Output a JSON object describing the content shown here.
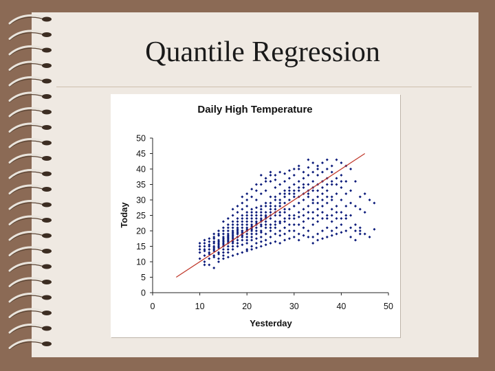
{
  "slide": {
    "title": "Quantile Regression"
  },
  "colors": {
    "background": "#8b6a55",
    "paper": "#efe9e2",
    "points": "#0a1a7a",
    "fit_line": "#c0392b"
  },
  "chart_data": {
    "type": "scatter",
    "title": "Daily High Temperature",
    "xlabel": "Yesterday",
    "ylabel": "Today",
    "xlim": [
      0,
      50
    ],
    "ylim": [
      0,
      50
    ],
    "xticks": [
      0,
      10,
      20,
      30,
      40,
      50
    ],
    "yticks": [
      0,
      5,
      10,
      15,
      20,
      25,
      30,
      35,
      40,
      45,
      50
    ],
    "grid": false,
    "legend": "none",
    "fit_line": {
      "x": [
        5,
        45
      ],
      "y": [
        5,
        45
      ]
    },
    "points": [
      [
        10,
        11
      ],
      [
        10,
        13
      ],
      [
        10,
        15
      ],
      [
        11,
        10
      ],
      [
        11,
        12
      ],
      [
        11,
        14
      ],
      [
        11,
        16
      ],
      [
        11,
        13.5
      ],
      [
        12,
        11
      ],
      [
        12,
        13
      ],
      [
        12,
        15
      ],
      [
        12,
        12.5
      ],
      [
        12,
        16.5
      ],
      [
        13,
        12
      ],
      [
        13,
        14
      ],
      [
        13,
        16
      ],
      [
        13,
        11.5
      ],
      [
        13,
        13.5
      ],
      [
        13,
        17.5
      ],
      [
        14,
        12.5
      ],
      [
        14,
        14.5
      ],
      [
        14,
        16.5
      ],
      [
        14,
        18.5
      ],
      [
        14,
        13
      ],
      [
        14,
        11
      ],
      [
        15,
        13
      ],
      [
        15,
        15
      ],
      [
        15,
        17
      ],
      [
        15,
        19
      ],
      [
        15,
        14
      ],
      [
        15,
        21
      ],
      [
        15,
        12
      ],
      [
        16,
        14
      ],
      [
        16,
        16
      ],
      [
        16,
        18
      ],
      [
        16,
        20
      ],
      [
        16,
        22
      ],
      [
        16,
        15
      ],
      [
        16,
        17.5
      ],
      [
        16,
        13
      ],
      [
        17,
        15
      ],
      [
        17,
        17
      ],
      [
        17,
        19
      ],
      [
        17,
        21
      ],
      [
        17,
        23
      ],
      [
        17,
        25
      ],
      [
        17,
        16
      ],
      [
        17,
        14
      ],
      [
        18,
        16
      ],
      [
        18,
        18
      ],
      [
        18,
        20
      ],
      [
        18,
        22
      ],
      [
        18,
        24
      ],
      [
        18,
        26
      ],
      [
        18,
        15
      ],
      [
        18,
        19.5
      ],
      [
        19,
        17
      ],
      [
        19,
        19
      ],
      [
        19,
        21
      ],
      [
        19,
        23
      ],
      [
        19,
        25
      ],
      [
        19,
        27
      ],
      [
        19,
        29
      ],
      [
        19,
        15.5
      ],
      [
        20,
        16
      ],
      [
        20,
        18
      ],
      [
        20,
        20
      ],
      [
        20,
        22
      ],
      [
        20,
        24
      ],
      [
        20,
        26
      ],
      [
        20,
        28
      ],
      [
        20,
        30
      ],
      [
        20,
        14
      ],
      [
        21,
        17
      ],
      [
        21,
        19
      ],
      [
        21,
        21
      ],
      [
        21,
        23
      ],
      [
        21,
        25
      ],
      [
        21,
        27
      ],
      [
        21,
        31
      ],
      [
        21,
        15
      ],
      [
        22,
        17.5
      ],
      [
        22,
        20
      ],
      [
        22,
        22.5
      ],
      [
        22,
        25
      ],
      [
        22,
        27.5
      ],
      [
        22,
        30
      ],
      [
        22,
        33
      ],
      [
        22,
        16
      ],
      [
        23,
        18
      ],
      [
        23,
        20
      ],
      [
        23,
        22
      ],
      [
        23,
        24
      ],
      [
        23,
        26
      ],
      [
        23,
        28
      ],
      [
        23,
        32
      ],
      [
        23,
        35
      ],
      [
        23,
        16.5
      ],
      [
        24,
        17
      ],
      [
        24,
        19
      ],
      [
        24,
        21
      ],
      [
        24,
        23
      ],
      [
        24,
        25
      ],
      [
        24,
        29
      ],
      [
        24,
        33
      ],
      [
        24,
        37
      ],
      [
        25,
        18
      ],
      [
        25,
        20
      ],
      [
        25,
        22
      ],
      [
        25,
        24
      ],
      [
        25,
        26
      ],
      [
        25,
        28
      ],
      [
        25,
        31
      ],
      [
        25,
        36
      ],
      [
        25,
        38
      ],
      [
        26,
        19
      ],
      [
        26,
        21
      ],
      [
        26,
        23
      ],
      [
        26,
        25
      ],
      [
        26,
        27
      ],
      [
        26,
        30
      ],
      [
        26,
        34
      ],
      [
        26,
        38
      ],
      [
        27,
        18.5
      ],
      [
        27,
        20
      ],
      [
        27,
        22.5
      ],
      [
        27,
        25
      ],
      [
        27,
        28
      ],
      [
        27,
        32
      ],
      [
        27,
        35
      ],
      [
        28,
        19
      ],
      [
        28,
        21
      ],
      [
        28,
        23
      ],
      [
        28,
        26
      ],
      [
        28,
        29
      ],
      [
        28,
        33
      ],
      [
        28,
        36
      ],
      [
        28,
        38.5
      ],
      [
        29,
        20
      ],
      [
        29,
        22
      ],
      [
        29,
        24
      ],
      [
        29,
        27
      ],
      [
        29,
        30
      ],
      [
        29,
        34
      ],
      [
        29,
        37
      ],
      [
        30,
        20
      ],
      [
        30,
        22
      ],
      [
        30,
        25
      ],
      [
        30,
        28
      ],
      [
        30,
        31
      ],
      [
        30,
        35
      ],
      [
        30,
        38
      ],
      [
        30,
        40
      ],
      [
        31,
        19
      ],
      [
        31,
        22
      ],
      [
        31,
        26
      ],
      [
        31,
        29
      ],
      [
        31,
        33
      ],
      [
        31,
        36
      ],
      [
        31,
        41
      ],
      [
        32,
        21
      ],
      [
        32,
        23
      ],
      [
        32,
        27
      ],
      [
        32,
        30
      ],
      [
        32,
        34
      ],
      [
        32,
        37
      ],
      [
        32,
        39
      ],
      [
        33,
        20
      ],
      [
        33,
        24
      ],
      [
        33,
        28
      ],
      [
        33,
        32
      ],
      [
        33,
        35
      ],
      [
        33,
        38
      ],
      [
        33,
        40.5
      ],
      [
        34,
        18
      ],
      [
        34,
        22
      ],
      [
        34,
        26
      ],
      [
        34,
        30
      ],
      [
        34,
        33
      ],
      [
        34,
        36
      ],
      [
        34,
        39
      ],
      [
        35,
        19
      ],
      [
        35,
        23
      ],
      [
        35,
        27
      ],
      [
        35,
        31
      ],
      [
        35,
        35
      ],
      [
        35,
        38
      ],
      [
        35,
        41
      ],
      [
        36,
        20
      ],
      [
        36,
        24
      ],
      [
        36,
        28
      ],
      [
        36,
        32
      ],
      [
        36,
        36
      ],
      [
        36,
        39
      ],
      [
        37,
        21
      ],
      [
        37,
        25
      ],
      [
        37,
        29
      ],
      [
        37,
        33
      ],
      [
        37,
        37
      ],
      [
        37,
        40
      ],
      [
        38,
        20
      ],
      [
        38,
        23
      ],
      [
        38,
        27
      ],
      [
        38,
        31
      ],
      [
        38,
        35
      ],
      [
        38,
        39
      ],
      [
        39,
        21
      ],
      [
        39,
        24
      ],
      [
        39,
        28
      ],
      [
        39,
        32
      ],
      [
        39,
        37
      ],
      [
        40,
        22
      ],
      [
        40,
        26
      ],
      [
        40,
        30
      ],
      [
        40,
        34
      ],
      [
        40,
        38
      ],
      [
        41,
        24
      ],
      [
        41,
        28
      ],
      [
        41,
        32
      ],
      [
        41,
        36
      ],
      [
        42,
        25
      ],
      [
        42,
        21
      ],
      [
        42,
        29
      ],
      [
        42,
        33
      ],
      [
        43,
        22
      ],
      [
        43,
        20
      ],
      [
        44,
        21
      ],
      [
        44,
        19
      ],
      [
        43,
        28
      ],
      [
        44,
        27
      ],
      [
        45,
        26
      ],
      [
        42,
        40
      ],
      [
        40,
        42
      ],
      [
        39,
        43
      ],
      [
        41,
        41
      ],
      [
        43,
        36
      ],
      [
        38,
        41
      ],
      [
        37,
        43
      ],
      [
        36,
        42
      ],
      [
        33,
        43
      ],
      [
        35,
        40
      ],
      [
        34,
        42
      ],
      [
        31,
        40
      ],
      [
        29,
        39.5
      ],
      [
        27,
        39
      ],
      [
        26,
        36.5
      ],
      [
        24,
        36
      ],
      [
        23,
        38
      ],
      [
        25,
        39
      ],
      [
        22,
        35
      ],
      [
        21,
        33.5
      ],
      [
        20,
        32
      ],
      [
        19,
        31
      ],
      [
        18,
        28
      ],
      [
        17,
        27
      ],
      [
        16,
        24
      ],
      [
        15,
        23
      ],
      [
        14,
        20
      ],
      [
        13,
        19
      ],
      [
        12,
        17.5
      ],
      [
        11,
        17
      ],
      [
        10,
        16
      ],
      [
        11,
        9
      ],
      [
        12,
        9
      ],
      [
        13,
        8
      ],
      [
        14,
        10
      ],
      [
        15,
        11
      ],
      [
        16,
        11.5
      ],
      [
        17,
        12
      ],
      [
        18,
        12.5
      ],
      [
        19,
        13
      ],
      [
        20,
        13.5
      ],
      [
        21,
        14
      ],
      [
        22,
        14.5
      ],
      [
        23,
        15
      ],
      [
        24,
        15.5
      ],
      [
        25,
        16
      ],
      [
        26,
        16.5
      ],
      [
        27,
        16
      ],
      [
        28,
        17
      ],
      [
        29,
        17.5
      ],
      [
        30,
        18
      ],
      [
        31,
        17
      ],
      [
        32,
        18.5
      ],
      [
        33,
        18
      ],
      [
        34,
        16
      ],
      [
        35,
        17
      ],
      [
        36,
        17.5
      ],
      [
        37,
        18
      ],
      [
        38,
        18.5
      ],
      [
        39,
        19
      ],
      [
        40,
        19.5
      ],
      [
        41,
        20
      ],
      [
        42,
        18
      ],
      [
        43,
        17
      ],
      [
        44,
        20
      ],
      [
        45,
        19
      ],
      [
        46,
        18
      ],
      [
        47,
        20.5
      ],
      [
        47,
        29
      ],
      [
        45,
        32
      ],
      [
        44,
        31
      ],
      [
        46,
        30
      ],
      [
        13,
        15
      ],
      [
        14,
        15.5
      ],
      [
        15,
        16
      ],
      [
        16,
        16.5
      ],
      [
        17,
        18
      ],
      [
        18,
        17
      ],
      [
        19,
        18
      ],
      [
        20,
        19
      ],
      [
        21,
        20
      ],
      [
        22,
        21
      ],
      [
        23,
        21.5
      ],
      [
        24,
        22
      ],
      [
        25,
        21
      ],
      [
        26,
        22
      ],
      [
        27,
        23
      ],
      [
        28,
        24
      ],
      [
        29,
        25
      ],
      [
        30,
        24
      ],
      [
        31,
        24.5
      ],
      [
        32,
        25
      ],
      [
        33,
        26
      ],
      [
        34,
        24
      ],
      [
        35,
        25
      ],
      [
        36,
        26
      ],
      [
        37,
        24
      ],
      [
        38,
        25
      ],
      [
        39,
        26
      ],
      [
        40,
        24
      ],
      [
        41,
        25
      ],
      [
        16,
        19
      ],
      [
        17,
        20
      ],
      [
        18,
        21
      ],
      [
        19,
        20
      ],
      [
        20,
        21
      ],
      [
        21,
        22
      ],
      [
        22,
        23
      ],
      [
        23,
        23
      ],
      [
        24,
        24
      ],
      [
        25,
        25
      ],
      [
        26,
        26
      ],
      [
        27,
        26
      ],
      [
        28,
        27
      ],
      [
        15,
        18
      ],
      [
        16,
        17
      ],
      [
        17,
        16.5
      ],
      [
        18,
        19
      ],
      [
        19,
        22
      ],
      [
        20,
        23
      ],
      [
        21,
        24
      ],
      [
        22,
        24
      ],
      [
        23,
        25
      ],
      [
        24,
        26
      ],
      [
        25,
        27
      ],
      [
        26,
        28
      ],
      [
        27,
        29
      ],
      [
        14,
        17
      ],
      [
        15,
        15.5
      ],
      [
        16,
        18.5
      ],
      [
        17,
        19.5
      ],
      [
        18,
        20.5
      ],
      [
        19,
        19.5
      ],
      [
        20,
        20.5
      ],
      [
        21,
        21.5
      ],
      [
        22,
        22
      ],
      [
        23,
        23.5
      ],
      [
        24,
        24.5
      ],
      [
        12,
        14
      ],
      [
        13,
        14.5
      ],
      [
        14,
        15
      ],
      [
        15,
        16.5
      ],
      [
        16,
        17
      ],
      [
        17,
        17.5
      ],
      [
        18,
        18
      ],
      [
        19,
        18.5
      ],
      [
        20,
        17
      ],
      [
        21,
        18
      ],
      [
        22,
        19
      ],
      [
        23,
        19.5
      ],
      [
        10,
        14
      ],
      [
        11,
        15
      ],
      [
        12,
        15.5
      ],
      [
        13,
        16.5
      ],
      [
        14,
        16
      ],
      [
        15,
        17.5
      ],
      [
        16,
        18
      ],
      [
        17,
        18.5
      ],
      [
        18,
        19
      ],
      [
        19,
        20
      ],
      [
        20,
        20
      ],
      [
        21,
        20.5
      ],
      [
        13,
        18
      ],
      [
        14,
        19
      ],
      [
        15,
        20
      ],
      [
        16,
        21
      ],
      [
        17,
        22
      ],
      [
        18,
        23
      ],
      [
        19,
        24
      ],
      [
        20,
        25
      ],
      [
        21,
        26
      ],
      [
        22,
        26
      ],
      [
        23,
        27
      ],
      [
        24,
        28
      ],
      [
        25,
        29
      ],
      [
        28,
        31
      ],
      [
        29,
        32
      ],
      [
        30,
        33
      ],
      [
        31,
        34
      ],
      [
        32,
        35
      ],
      [
        33,
        33
      ],
      [
        34,
        34
      ],
      [
        35,
        33
      ],
      [
        36,
        34
      ],
      [
        37,
        35
      ],
      [
        38,
        36
      ],
      [
        39,
        35
      ],
      [
        40,
        36
      ],
      [
        26,
        31
      ],
      [
        27,
        30
      ],
      [
        28,
        32
      ],
      [
        29,
        33
      ],
      [
        30,
        32
      ],
      [
        31,
        31
      ],
      [
        32,
        32
      ],
      [
        33,
        31
      ],
      [
        34,
        29
      ],
      [
        35,
        29
      ],
      [
        36,
        30
      ],
      [
        37,
        31
      ],
      [
        38,
        30
      ]
    ]
  }
}
